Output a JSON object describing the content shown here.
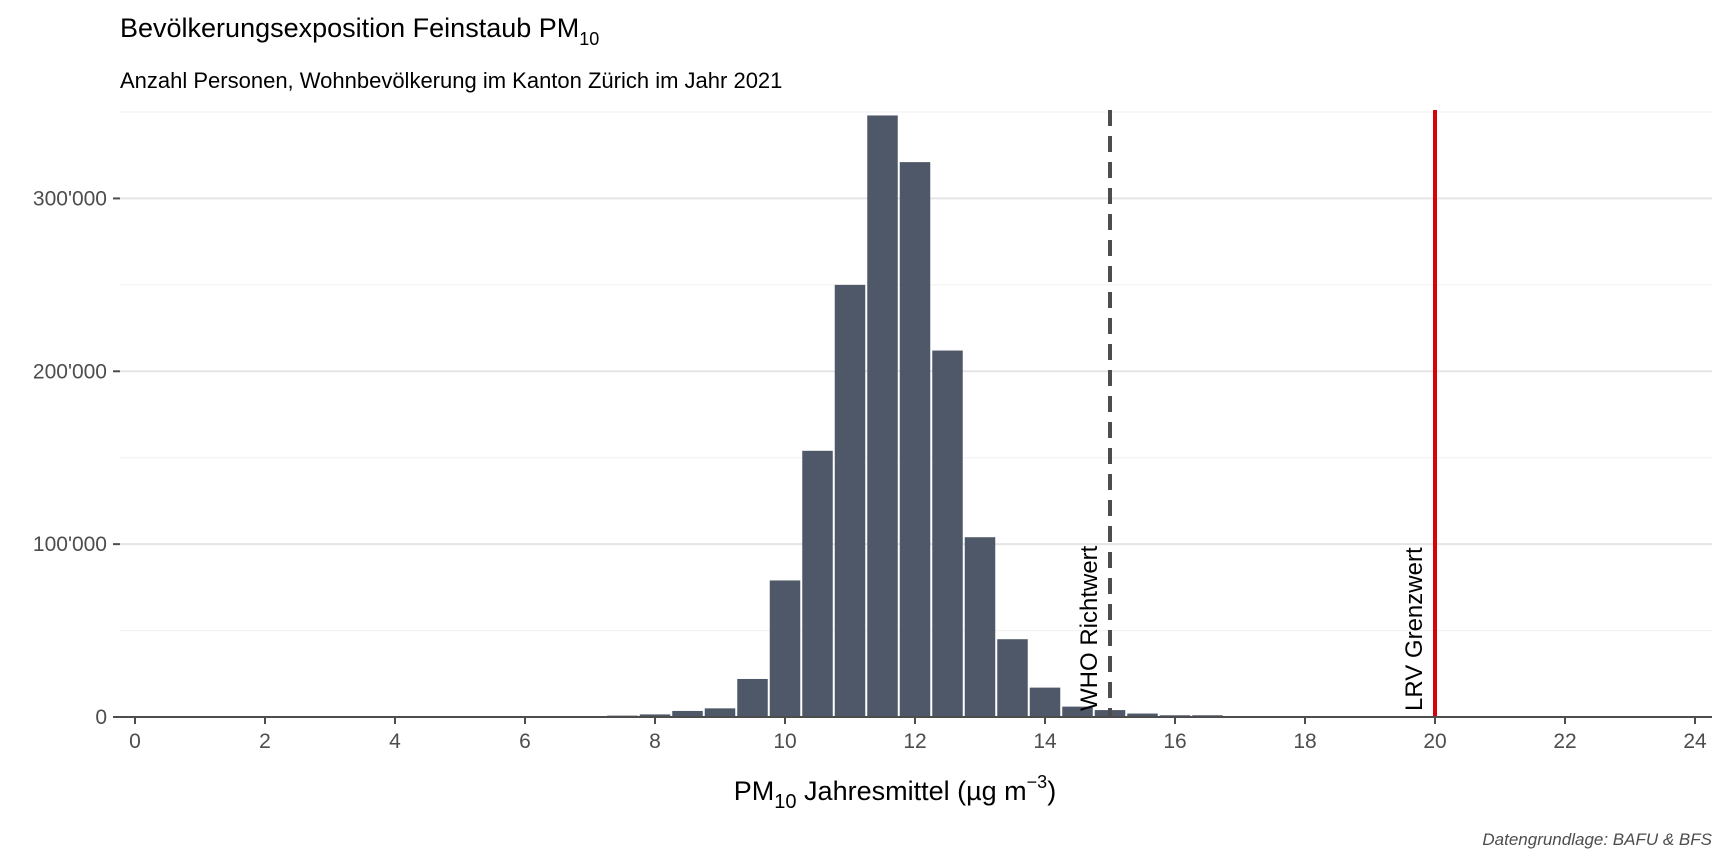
{
  "chart_data": {
    "type": "bar",
    "title": "Bevölkerungsexposition Feinstaub PM",
    "title_sub": "10",
    "subtitle": "Anzahl Personen, Wohnbevölkerung im Kanton Zürich im Jahr 2021",
    "xlabel_main": "PM",
    "xlabel_sub": "10",
    "xlabel_rest": " Jahresmittel (µg m",
    "xlabel_sup": "−3",
    "xlabel_end": ")",
    "caption": "Datengrundlage: BAFU & BFS",
    "xlim": [
      -0.2,
      24.3
    ],
    "ylim": [
      0,
      350000
    ],
    "x_ticks": [
      0,
      2,
      4,
      6,
      8,
      10,
      12,
      14,
      16,
      18,
      20,
      22,
      24
    ],
    "x_tick_labels": [
      "0",
      "2",
      "4",
      "6",
      "8",
      "10",
      "12",
      "14",
      "16",
      "18",
      "20",
      "22",
      "24"
    ],
    "y_ticks": [
      0,
      100000,
      200000,
      300000
    ],
    "y_tick_labels": [
      "0",
      "100'000",
      "200'000",
      "300'000"
    ],
    "bar_width": 0.5,
    "x": [
      7.5,
      8.0,
      8.5,
      9.0,
      9.5,
      10.0,
      10.5,
      11.0,
      11.5,
      12.0,
      12.5,
      13.0,
      13.5,
      14.0,
      14.5,
      15.0,
      15.5,
      16.0,
      16.5
    ],
    "values": [
      800,
      1500,
      3500,
      5000,
      22000,
      79000,
      154000,
      250000,
      348000,
      321000,
      212000,
      104000,
      45000,
      17000,
      6000,
      4000,
      2000,
      1000,
      1000
    ],
    "bar_color": "#4f5868",
    "grid": true,
    "reference_lines": [
      {
        "x": 15,
        "label": "WHO Richtwert",
        "style": "dashed",
        "color": "#4d4d4d"
      },
      {
        "x": 20,
        "label": "LRV Grenzwert",
        "style": "solid",
        "color": "#d7000d"
      }
    ]
  }
}
